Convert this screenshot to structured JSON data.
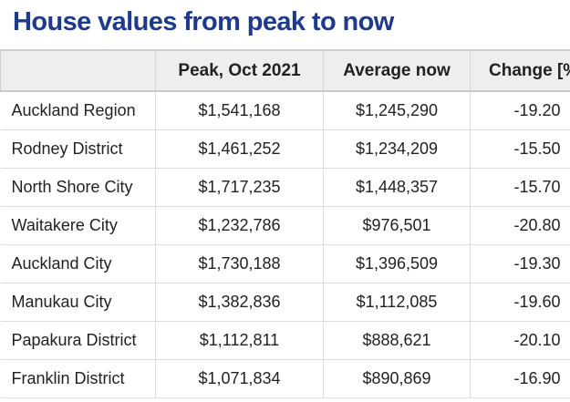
{
  "title": "House values from peak to now",
  "table": {
    "columns": [
      "",
      "Peak, Oct 2021",
      "Average now",
      "Change [%]"
    ],
    "rows": [
      {
        "area": "Auckland Region",
        "peak": "$1,541,168",
        "now": "$1,245,290",
        "change": "-19.20"
      },
      {
        "area": "Rodney District",
        "peak": "$1,461,252",
        "now": "$1,234,209",
        "change": "-15.50"
      },
      {
        "area": "North Shore City",
        "peak": "$1,717,235",
        "now": "$1,448,357",
        "change": "-15.70"
      },
      {
        "area": "Waitakere City",
        "peak": "$1,232,786",
        "now": "$976,501",
        "change": "-20.80"
      },
      {
        "area": "Auckland City",
        "peak": "$1,730,188",
        "now": "$1,396,509",
        "change": "-19.30"
      },
      {
        "area": "Manukau City",
        "peak": "$1,382,836",
        "now": "$1,112,085",
        "change": "-19.60"
      },
      {
        "area": "Papakura District",
        "peak": "$1,112,811",
        "now": "$888,621",
        "change": "-20.10"
      },
      {
        "area": "Franklin District",
        "peak": "$1,071,834",
        "now": "$890,869",
        "change": "-16.90"
      }
    ]
  }
}
